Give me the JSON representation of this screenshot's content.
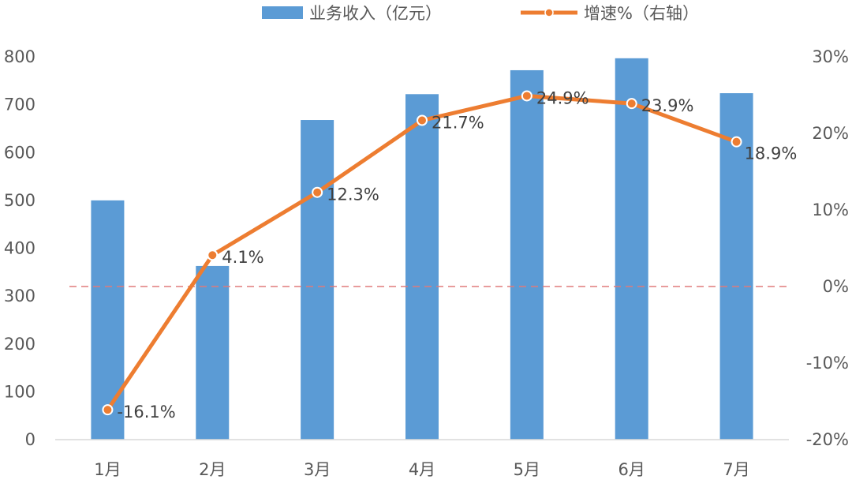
{
  "chart_data": {
    "type": "bar",
    "categories": [
      "1月",
      "2月",
      "3月",
      "4月",
      "5月",
      "6月",
      "7月"
    ],
    "series": [
      {
        "name": "业务收入（亿元）",
        "type": "bar",
        "axis": "left",
        "color": "#5b9bd5",
        "values": [
          500,
          363,
          668,
          722,
          772,
          797,
          724
        ]
      },
      {
        "name": "增速%（右轴）",
        "type": "line",
        "axis": "right",
        "color": "#ed7d31",
        "values": [
          -16.1,
          4.1,
          12.3,
          21.7,
          24.9,
          23.9,
          18.9
        ],
        "labels": [
          "-16.1%",
          "4.1%",
          "12.3%",
          "21.7%",
          "24.9%",
          "23.9%",
          "18.9%"
        ]
      }
    ],
    "y_left": {
      "ylim": [
        0,
        800
      ],
      "ticks": [
        0,
        100,
        200,
        300,
        400,
        500,
        600,
        700,
        800
      ]
    },
    "y_right": {
      "ylim": [
        -20,
        30
      ],
      "ticks": [
        "-20%",
        "-10%",
        "0%",
        "10%",
        "20%",
        "30%"
      ],
      "tick_values": [
        -20,
        -10,
        0,
        10,
        20,
        30
      ]
    },
    "reference_line": {
      "axis": "right",
      "value": 0,
      "style": "dashed",
      "color": "#e07b7b"
    },
    "legend": {
      "position": "top"
    },
    "grid": false
  }
}
